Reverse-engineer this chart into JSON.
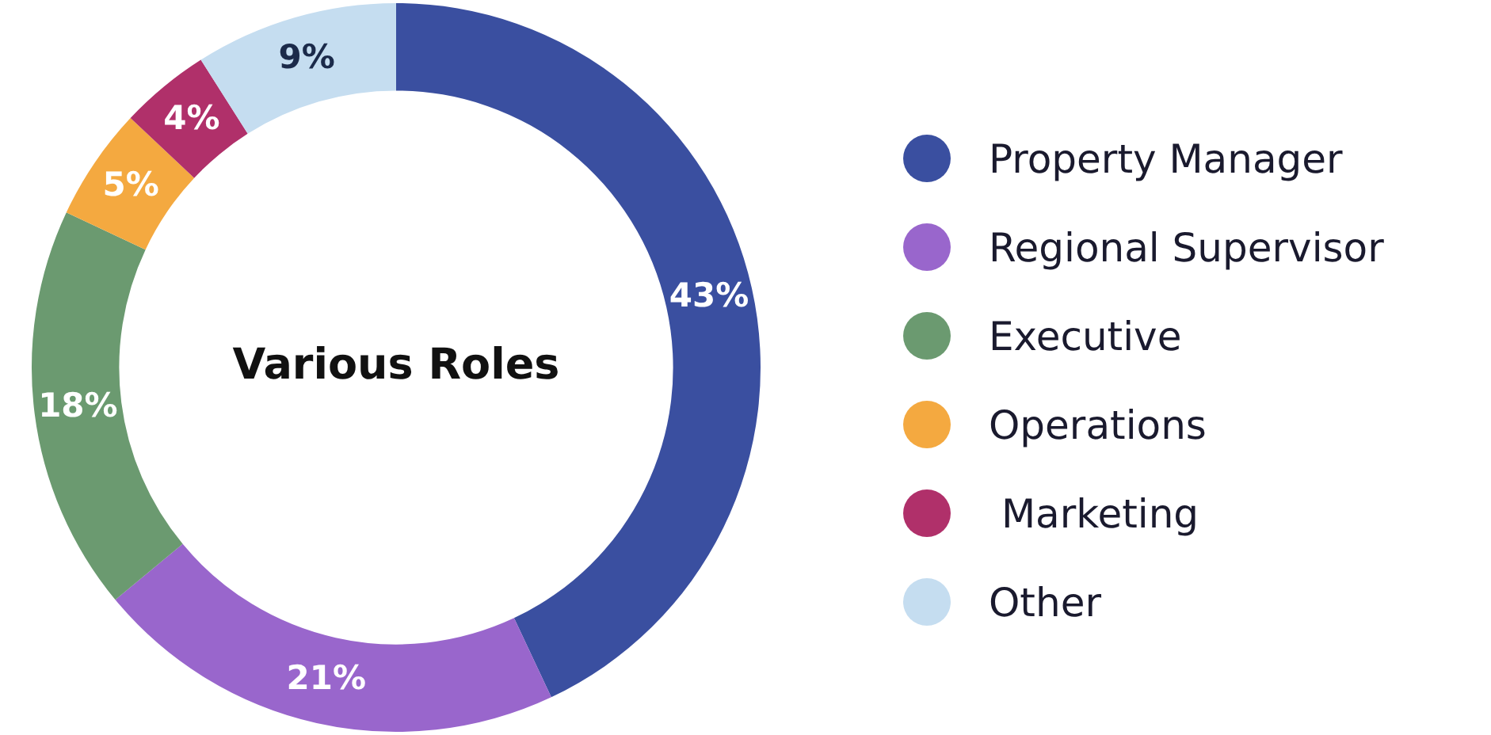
{
  "chart_data": {
    "type": "donut",
    "title": "Various Roles",
    "categories": [
      "Property Manager",
      "Regional Supervisor",
      "Executive",
      "Operations",
      " Marketing",
      "Other"
    ],
    "values": [
      43,
      21,
      18,
      5,
      4,
      9
    ],
    "colors": [
      "#3a4fa0",
      "#9966cc",
      "#6b9a70",
      "#f4a940",
      "#b0306a",
      "#c5ddf0"
    ],
    "value_labels": [
      "43%",
      "21%",
      "18%",
      "5%",
      "4%",
      "9%"
    ],
    "legend": "right"
  }
}
